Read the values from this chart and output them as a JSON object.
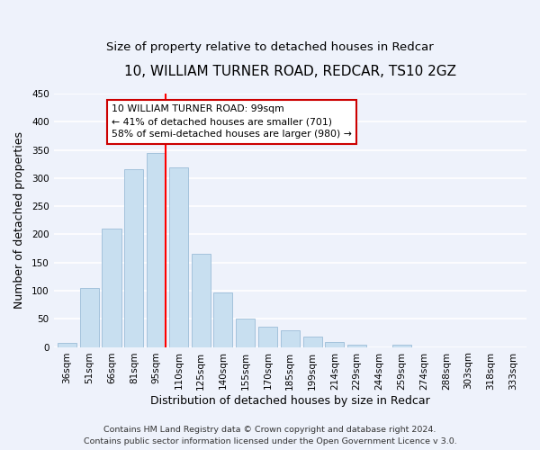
{
  "title": "10, WILLIAM TURNER ROAD, REDCAR, TS10 2GZ",
  "subtitle": "Size of property relative to detached houses in Redcar",
  "xlabel": "Distribution of detached houses by size in Redcar",
  "ylabel": "Number of detached properties",
  "bar_labels": [
    "36sqm",
    "51sqm",
    "66sqm",
    "81sqm",
    "95sqm",
    "110sqm",
    "125sqm",
    "140sqm",
    "155sqm",
    "170sqm",
    "185sqm",
    "199sqm",
    "214sqm",
    "229sqm",
    "244sqm",
    "259sqm",
    "274sqm",
    "288sqm",
    "303sqm",
    "318sqm",
    "333sqm"
  ],
  "bar_values": [
    7,
    105,
    210,
    316,
    345,
    319,
    165,
    97,
    50,
    36,
    29,
    18,
    9,
    4,
    0,
    4,
    0,
    0,
    0,
    0,
    0
  ],
  "bar_color": "#c8dff0",
  "bar_edge_color": "#9bbcd8",
  "property_line_index": 4,
  "property_line_color": "red",
  "annotation_text": "10 WILLIAM TURNER ROAD: 99sqm\n← 41% of detached houses are smaller (701)\n58% of semi-detached houses are larger (980) →",
  "annotation_box_color": "white",
  "annotation_box_edge_color": "#cc0000",
  "ylim": [
    0,
    450
  ],
  "yticks": [
    0,
    50,
    100,
    150,
    200,
    250,
    300,
    350,
    400,
    450
  ],
  "footer_line1": "Contains HM Land Registry data © Crown copyright and database right 2024.",
  "footer_line2": "Contains public sector information licensed under the Open Government Licence v 3.0.",
  "background_color": "#eef2fb",
  "grid_color": "white",
  "title_fontsize": 11,
  "subtitle_fontsize": 9.5,
  "axis_label_fontsize": 9,
  "tick_fontsize": 7.5,
  "annotation_fontsize": 7.8,
  "footer_fontsize": 6.8
}
